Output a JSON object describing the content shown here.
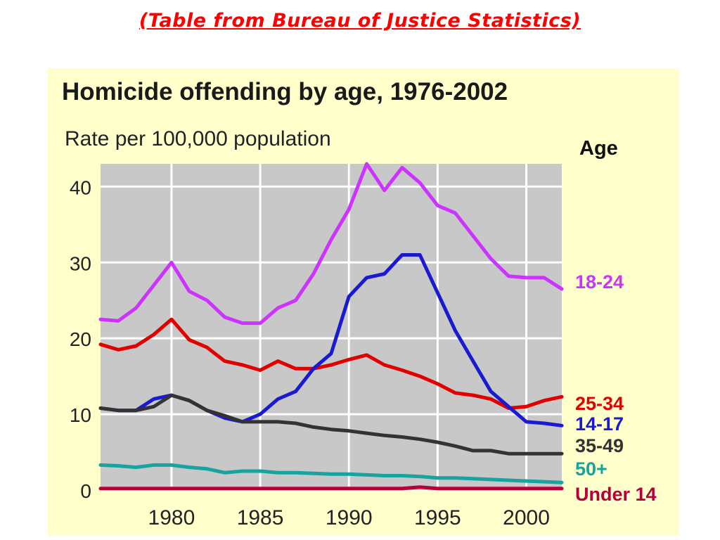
{
  "caption": "(Table from Bureau of Justice Statistics)",
  "legend_heading": "Age",
  "colors": {
    "caption": "#ff0000",
    "panel_background": "#ffffcc",
    "plot_background": "#c8c8c8",
    "grid": "#ffffff"
  },
  "chart_data": {
    "type": "line",
    "title": "Homicide offending by age, 1976-2002",
    "ylabel": "Rate per 100,000 population",
    "xlabel": "",
    "xlim": [
      1976,
      2002
    ],
    "ylim": [
      0,
      43
    ],
    "grid": true,
    "legend_placement": "right, labels aligned to line ends",
    "x_ticks": [
      1980,
      1985,
      1990,
      1995,
      2000
    ],
    "y_ticks": [
      0,
      10,
      20,
      30,
      40
    ],
    "x": [
      1976,
      1977,
      1978,
      1979,
      1980,
      1981,
      1982,
      1983,
      1984,
      1985,
      1986,
      1987,
      1988,
      1989,
      1990,
      1991,
      1992,
      1993,
      1994,
      1995,
      1996,
      1997,
      1998,
      1999,
      2000,
      2001,
      2002
    ],
    "series": [
      {
        "name": "18-24",
        "color": "#cc33ff",
        "values": [
          22.5,
          22.3,
          24.0,
          27.0,
          30.0,
          26.2,
          25.0,
          22.8,
          22.0,
          22.0,
          24.0,
          25.0,
          28.5,
          33.0,
          37.0,
          43.0,
          39.5,
          42.5,
          40.5,
          37.5,
          36.5,
          33.5,
          30.5,
          28.2,
          28.0,
          28.0,
          26.5
        ]
      },
      {
        "name": "25-34",
        "color": "#e00000",
        "values": [
          19.2,
          18.5,
          19.0,
          20.5,
          22.5,
          19.8,
          18.8,
          17.0,
          16.5,
          15.8,
          17.0,
          16.0,
          16.0,
          16.5,
          17.2,
          17.8,
          16.5,
          15.8,
          15.0,
          14.0,
          12.8,
          12.5,
          12.0,
          10.8,
          11.0,
          11.8,
          12.3
        ]
      },
      {
        "name": "14-17",
        "color": "#1a1ad0",
        "values": [
          10.8,
          10.5,
          10.5,
          12.0,
          12.5,
          11.8,
          10.5,
          9.5,
          9.0,
          10.0,
          12.0,
          13.0,
          16.0,
          18.0,
          25.5,
          28.0,
          28.5,
          31.0,
          31.0,
          26.0,
          21.0,
          17.0,
          13.0,
          11.0,
          9.0,
          8.8,
          8.5
        ]
      },
      {
        "name": "35-49",
        "color": "#333333",
        "values": [
          10.8,
          10.5,
          10.5,
          11.0,
          12.5,
          11.8,
          10.5,
          9.8,
          9.0,
          9.0,
          9.0,
          8.8,
          8.3,
          8.0,
          7.8,
          7.5,
          7.2,
          7.0,
          6.7,
          6.3,
          5.8,
          5.2,
          5.2,
          4.8,
          4.8,
          4.8,
          4.8
        ]
      },
      {
        "name": "50+",
        "color": "#17a3a0",
        "values": [
          3.3,
          3.2,
          3.0,
          3.3,
          3.3,
          3.0,
          2.8,
          2.3,
          2.5,
          2.5,
          2.3,
          2.3,
          2.2,
          2.1,
          2.1,
          2.0,
          1.9,
          1.9,
          1.8,
          1.6,
          1.6,
          1.5,
          1.4,
          1.3,
          1.2,
          1.1,
          1.0
        ]
      },
      {
        "name": "Under 14",
        "color": "#b5003c",
        "values": [
          0.2,
          0.2,
          0.2,
          0.2,
          0.2,
          0.2,
          0.2,
          0.2,
          0.2,
          0.2,
          0.2,
          0.2,
          0.2,
          0.2,
          0.2,
          0.2,
          0.2,
          0.2,
          0.4,
          0.2,
          0.2,
          0.2,
          0.2,
          0.2,
          0.2,
          0.2,
          0.2
        ]
      }
    ]
  }
}
